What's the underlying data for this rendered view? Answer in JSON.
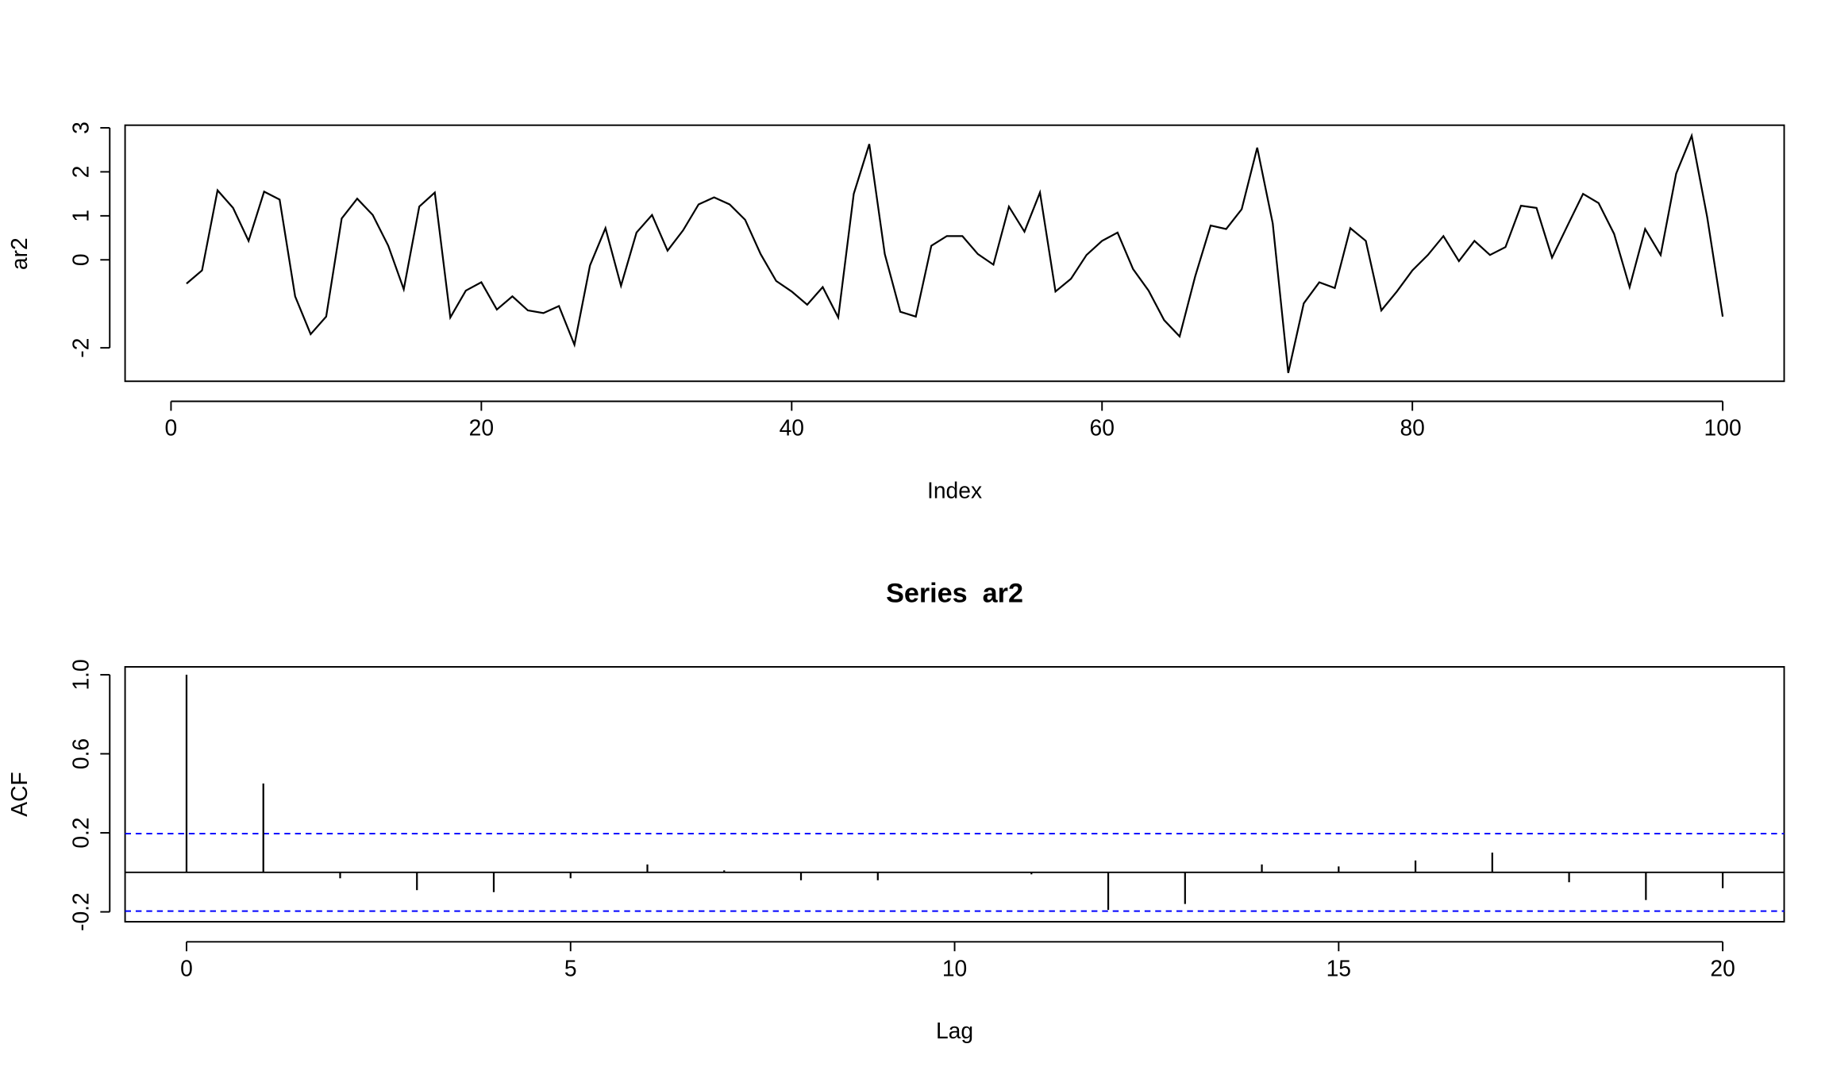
{
  "chart_data": [
    {
      "type": "line",
      "xlabel": "Index",
      "ylabel": "ar2",
      "color": "#000000",
      "x": [
        1,
        2,
        3,
        4,
        5,
        6,
        7,
        8,
        9,
        10,
        11,
        12,
        13,
        14,
        15,
        16,
        17,
        18,
        19,
        20,
        21,
        22,
        23,
        24,
        25,
        26,
        27,
        28,
        29,
        30,
        31,
        32,
        33,
        34,
        35,
        36,
        37,
        38,
        39,
        40,
        41,
        42,
        43,
        44,
        45,
        46,
        47,
        48,
        49,
        50,
        51,
        52,
        53,
        54,
        55,
        56,
        57,
        58,
        59,
        60,
        61,
        62,
        63,
        64,
        65,
        66,
        67,
        68,
        69,
        70,
        71,
        72,
        73,
        74,
        75,
        76,
        77,
        78,
        79,
        80,
        81,
        82,
        83,
        84,
        85,
        86,
        87,
        88,
        89,
        90,
        91,
        92,
        93,
        94,
        95,
        96,
        97,
        98,
        99,
        100
      ],
      "values": [
        -0.54,
        -0.24,
        1.58,
        1.18,
        0.43,
        1.55,
        1.37,
        -0.83,
        -1.69,
        -1.29,
        0.94,
        1.39,
        1.02,
        0.32,
        -0.67,
        1.21,
        1.53,
        -1.31,
        -0.7,
        -0.51,
        -1.13,
        -0.83,
        -1.15,
        -1.21,
        -1.05,
        -1.93,
        -0.13,
        0.72,
        -0.59,
        0.62,
        1.02,
        0.21,
        0.67,
        1.26,
        1.42,
        1.26,
        0.91,
        0.13,
        -0.48,
        -0.72,
        -1.02,
        -0.62,
        -1.31,
        1.5,
        2.63,
        0.13,
        -1.18,
        -1.29,
        0.32,
        0.54,
        0.54,
        0.13,
        -0.11,
        1.21,
        0.64,
        1.53,
        -0.72,
        -0.43,
        0.11,
        0.43,
        0.62,
        -0.21,
        -0.7,
        -1.37,
        -1.74,
        -0.38,
        0.78,
        0.7,
        1.15,
        2.55,
        0.83,
        -2.57,
        -0.99,
        -0.51,
        -0.64,
        0.72,
        0.43,
        -1.15,
        -0.72,
        -0.24,
        0.11,
        0.54,
        -0.03,
        0.43,
        0.11,
        0.29,
        1.23,
        1.18,
        0.05,
        0.78,
        1.5,
        1.29,
        0.59,
        -0.62,
        0.7,
        0.11,
        1.96,
        2.82,
        0.97,
        -1.29
      ],
      "xlim": [
        -2.96,
        103.96
      ],
      "xticks": [
        0,
        20,
        40,
        60,
        80,
        100
      ],
      "ylim": [
        -2.76,
        3.06
      ],
      "yticks": [
        -2,
        0,
        1,
        2,
        3
      ]
    },
    {
      "type": "stem",
      "title": "Series  ar2",
      "xlabel": "Lag",
      "ylabel": "ACF",
      "color": "#000000",
      "x": [
        0,
        1,
        2,
        3,
        4,
        5,
        6,
        7,
        8,
        9,
        10,
        11,
        12,
        13,
        14,
        15,
        16,
        17,
        18,
        19,
        20
      ],
      "values": [
        1,
        0.45,
        -0.03,
        -0.09,
        -0.1,
        -0.03,
        0.04,
        0.01,
        -0.04,
        -0.04,
        0,
        -0.01,
        -0.19,
        -0.16,
        0.04,
        0.03,
        0.06,
        0.1,
        -0.05,
        -0.14,
        -0.08
      ],
      "conf_limits": [
        -0.196,
        0.196
      ],
      "conf_color": "#0000ff",
      "xlim": [
        -0.8,
        20.8
      ],
      "xticks": [
        0,
        5,
        10,
        15,
        20
      ],
      "ylim": [
        -0.25,
        1.04
      ],
      "yticks": [
        -0.2,
        0.2,
        0.6,
        {
          "value": 1,
          "label": "1.0"
        }
      ]
    }
  ]
}
